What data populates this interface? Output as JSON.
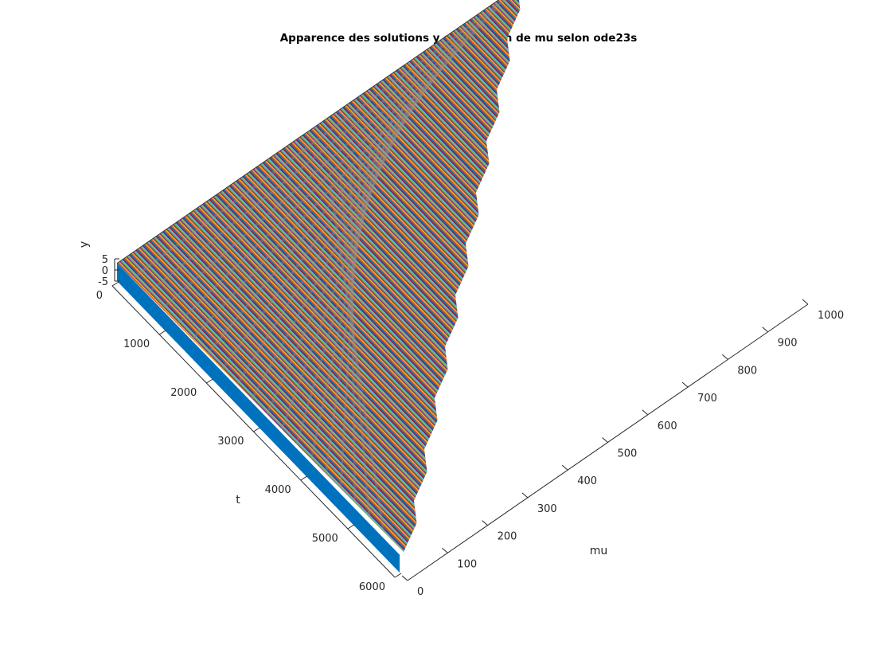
{
  "chart_data": {
    "type": "surface",
    "title": "Apparence des solutions y en fonction de mu selon ode23s",
    "xlabel": "mu",
    "ylabel": "t",
    "zlabel": "y",
    "xlim": [
      0,
      1000
    ],
    "ylim": [
      0,
      6000
    ],
    "zlim": [
      -5,
      5
    ],
    "x_ticks": [
      "0",
      "100",
      "200",
      "300",
      "400",
      "500",
      "600",
      "700",
      "800",
      "900",
      "1000"
    ],
    "y_ticks": [
      "0",
      "1000",
      "2000",
      "3000",
      "4000",
      "5000",
      "6000"
    ],
    "z_ticks": [
      "5",
      "0",
      "-5"
    ],
    "series_count": 1000,
    "grid": false,
    "colors": [
      "#0072bd",
      "#d95319",
      "#edb120",
      "#7e2f8e",
      "#77ac30",
      "#4dbeee",
      "#a2142f"
    ]
  }
}
